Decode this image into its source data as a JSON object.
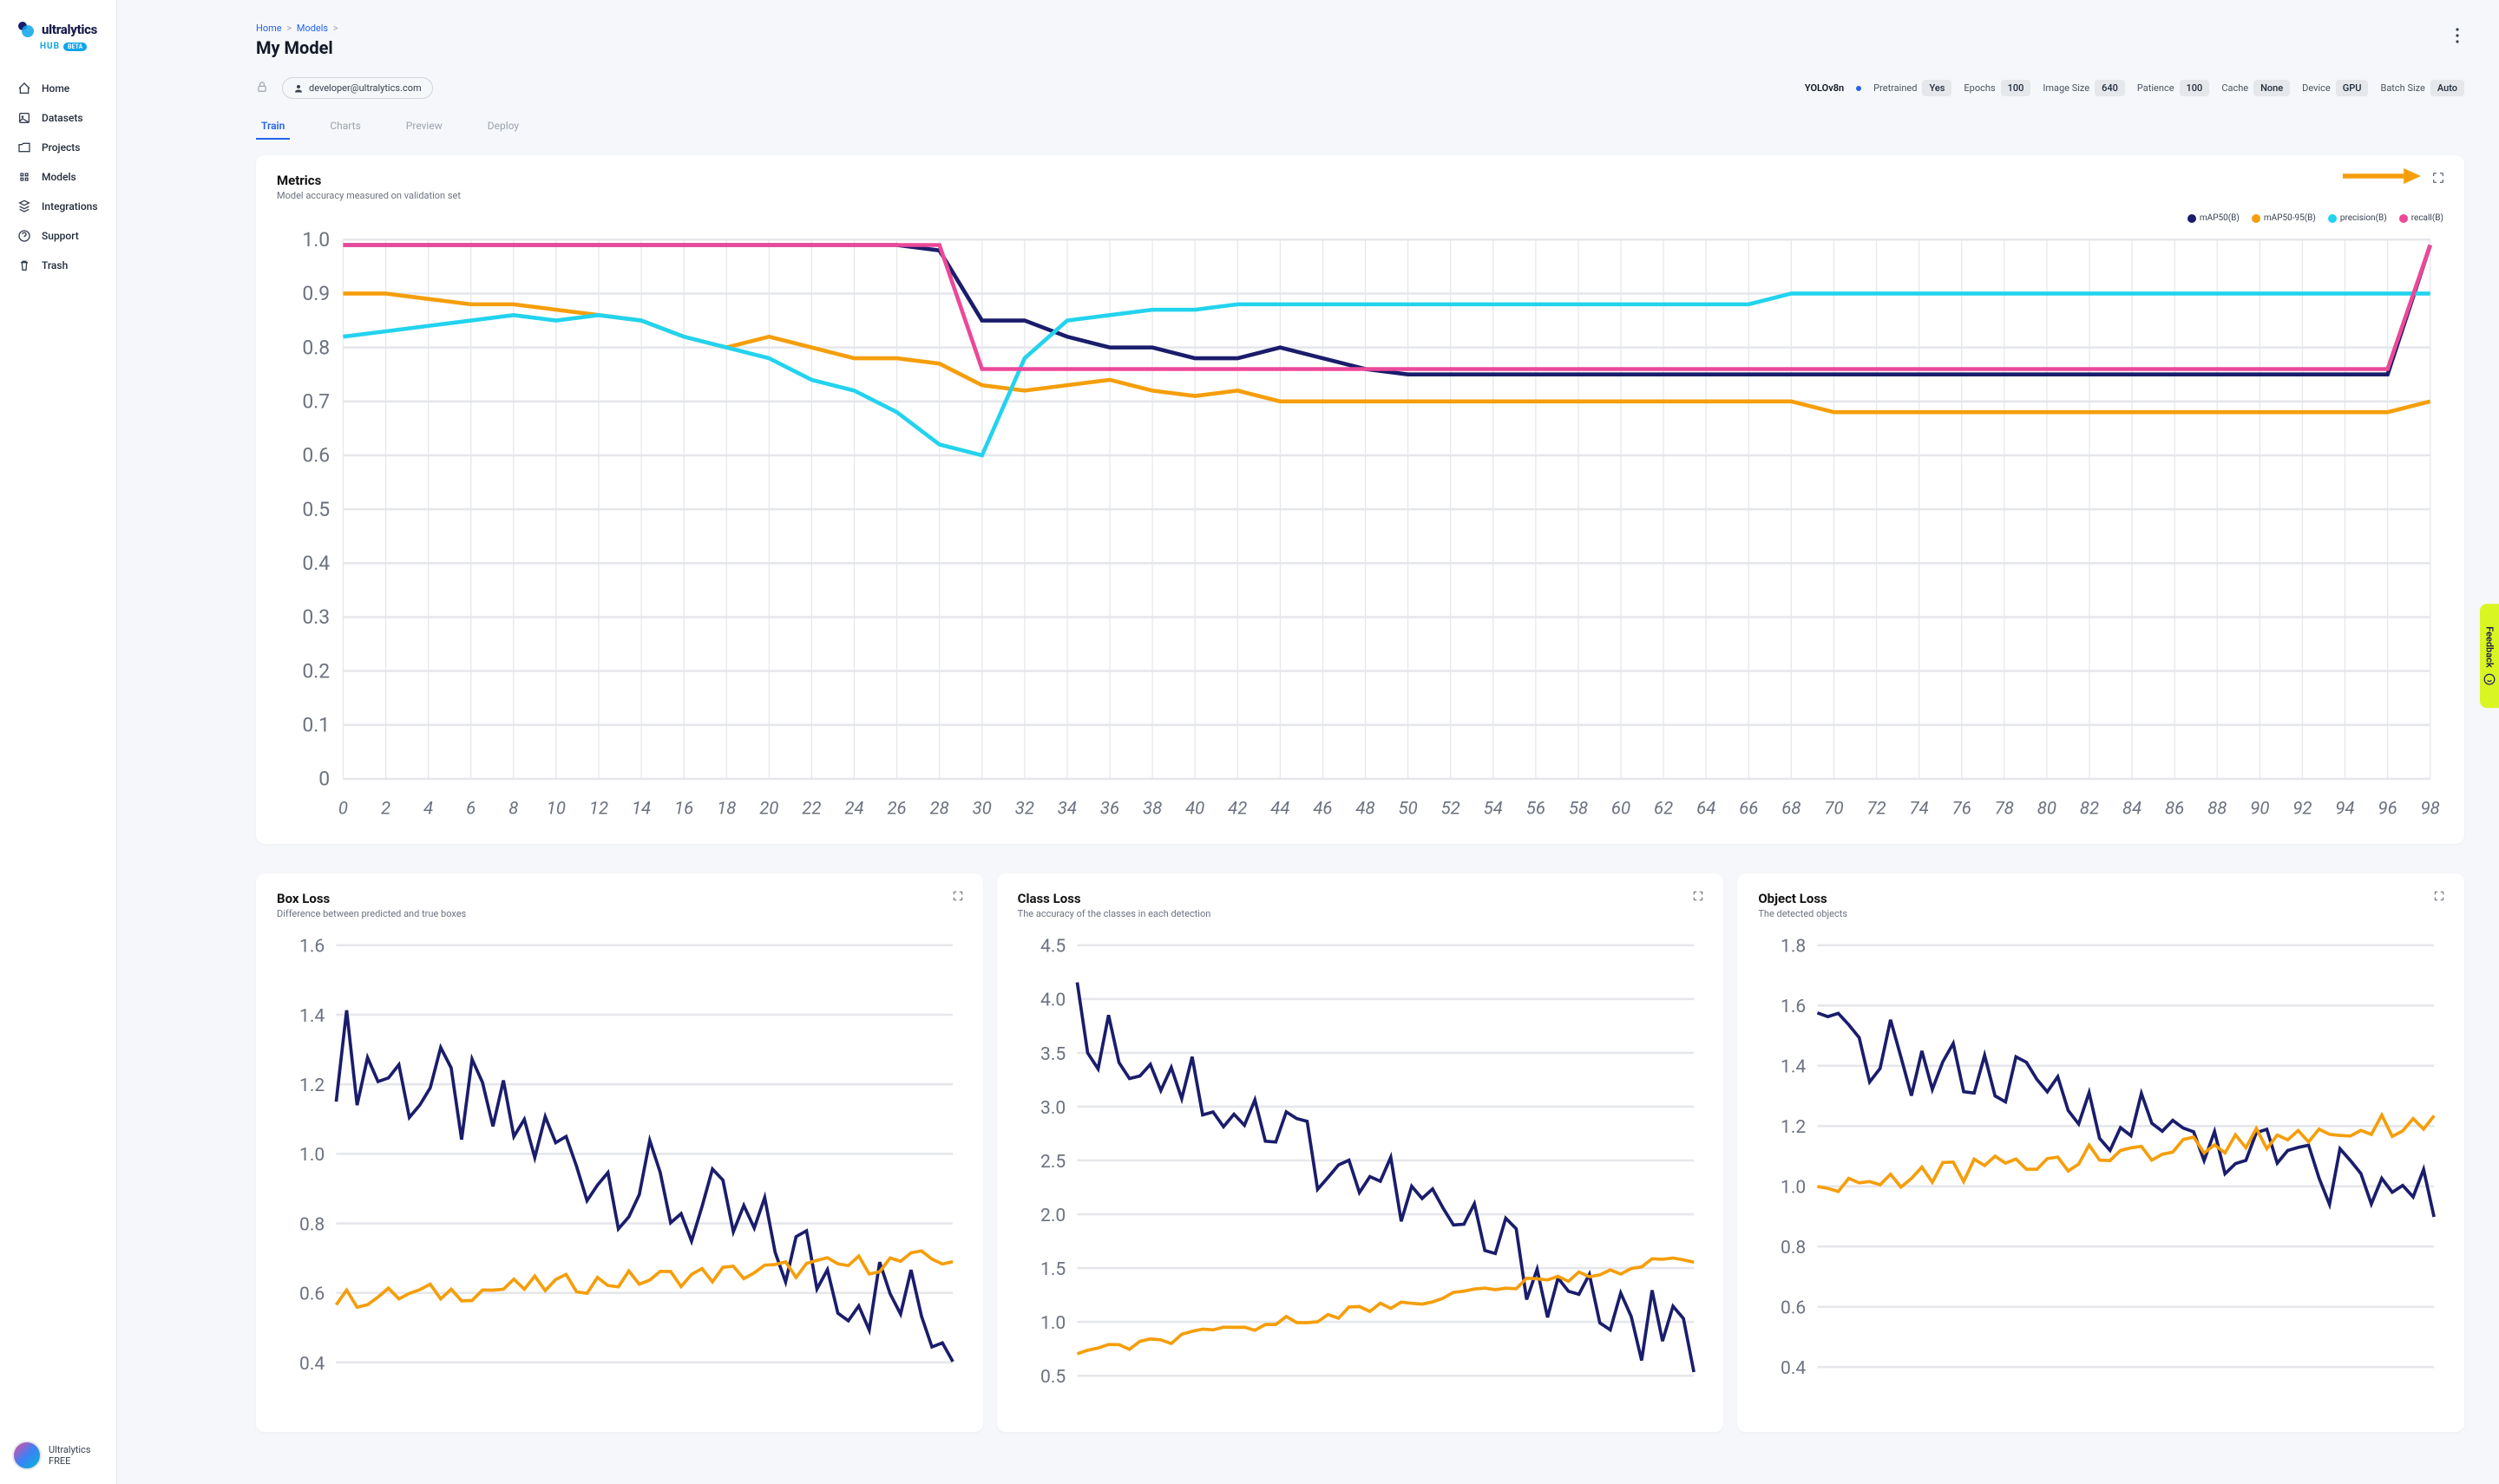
{
  "brand": {
    "name": "ultralytics",
    "sub": "HUB",
    "badge": "BETA"
  },
  "nav": [
    {
      "label": "Home"
    },
    {
      "label": "Datasets"
    },
    {
      "label": "Projects"
    },
    {
      "label": "Models"
    },
    {
      "label": "Integrations"
    },
    {
      "label": "Support"
    },
    {
      "label": "Trash"
    }
  ],
  "footer": {
    "name": "Ultralytics",
    "plan": "FREE"
  },
  "breadcrumb": {
    "home": "Home",
    "models": "Models"
  },
  "page_title": "My Model",
  "user_email": "developer@ultralytics.com",
  "model_name": "YOLOv8n",
  "params": [
    {
      "label": "Pretrained",
      "value": "Yes"
    },
    {
      "label": "Epochs",
      "value": "100"
    },
    {
      "label": "Image Size",
      "value": "640"
    },
    {
      "label": "Patience",
      "value": "100"
    },
    {
      "label": "Cache",
      "value": "None"
    },
    {
      "label": "Device",
      "value": "GPU"
    },
    {
      "label": "Batch Size",
      "value": "Auto"
    }
  ],
  "tabs": [
    "Train",
    "Charts",
    "Preview",
    "Deploy"
  ],
  "active_tab": 0,
  "metrics_card": {
    "title": "Metrics",
    "subtitle": "Model accuracy measured on validation set",
    "legend": [
      {
        "name": "mAP50(B)",
        "color": "#1a1d6b"
      },
      {
        "name": "mAP50-95(B)",
        "color": "#f59e0b"
      },
      {
        "name": "precision(B)",
        "color": "#22d3ee"
      },
      {
        "name": "recall(B)",
        "color": "#ec4899"
      }
    ],
    "y_ticks": [
      "1.0",
      "0.9",
      "0.8",
      "0.7",
      "0.6",
      "0.5",
      "0.4",
      "0.3",
      "0.2",
      "0.1",
      "0"
    ],
    "x_range": [
      0,
      98
    ],
    "x_step": 2,
    "ylim": [
      0,
      1.0
    ],
    "grid_color": "#e5e7eb",
    "background_color": "#ffffff",
    "series": {
      "mAP50": {
        "color": "#1a1d6b",
        "y_at_x": [
          0.99,
          0.99,
          0.99,
          0.99,
          0.99,
          0.99,
          0.99,
          0.99,
          0.99,
          0.99,
          0.99,
          0.99,
          0.99,
          0.99,
          0.98,
          0.85,
          0.85,
          0.82,
          0.8,
          0.8,
          0.78,
          0.78,
          0.8,
          0.78,
          0.76,
          0.75,
          0.75,
          0.75,
          0.75,
          0.75,
          0.75,
          0.75,
          0.75,
          0.75,
          0.75,
          0.75,
          0.75,
          0.75,
          0.75,
          0.75,
          0.75,
          0.75,
          0.75,
          0.75,
          0.75,
          0.75,
          0.75,
          0.75,
          0.75,
          0.99
        ]
      },
      "mAP50-95": {
        "color": "#f59e0b",
        "y_at_x": [
          0.9,
          0.9,
          0.89,
          0.88,
          0.88,
          0.87,
          0.86,
          0.85,
          0.82,
          0.8,
          0.82,
          0.8,
          0.78,
          0.78,
          0.77,
          0.73,
          0.72,
          0.73,
          0.74,
          0.72,
          0.71,
          0.72,
          0.7,
          0.7,
          0.7,
          0.7,
          0.7,
          0.7,
          0.7,
          0.7,
          0.7,
          0.7,
          0.7,
          0.7,
          0.7,
          0.68,
          0.68,
          0.68,
          0.68,
          0.68,
          0.68,
          0.68,
          0.68,
          0.68,
          0.68,
          0.68,
          0.68,
          0.68,
          0.68,
          0.7
        ]
      },
      "precision": {
        "color": "#22d3ee",
        "y_at_x": [
          0.82,
          0.83,
          0.84,
          0.85,
          0.86,
          0.85,
          0.86,
          0.85,
          0.82,
          0.8,
          0.78,
          0.74,
          0.72,
          0.68,
          0.62,
          0.6,
          0.78,
          0.85,
          0.86,
          0.87,
          0.87,
          0.88,
          0.88,
          0.88,
          0.88,
          0.88,
          0.88,
          0.88,
          0.88,
          0.88,
          0.88,
          0.88,
          0.88,
          0.88,
          0.9,
          0.9,
          0.9,
          0.9,
          0.9,
          0.9,
          0.9,
          0.9,
          0.9,
          0.9,
          0.9,
          0.9,
          0.9,
          0.9,
          0.9,
          0.9
        ]
      },
      "recall": {
        "color": "#ec4899",
        "y_at_x": [
          0.99,
          0.99,
          0.99,
          0.99,
          0.99,
          0.99,
          0.99,
          0.99,
          0.99,
          0.99,
          0.99,
          0.99,
          0.99,
          0.99,
          0.99,
          0.76,
          0.76,
          0.76,
          0.76,
          0.76,
          0.76,
          0.76,
          0.76,
          0.76,
          0.76,
          0.76,
          0.76,
          0.76,
          0.76,
          0.76,
          0.76,
          0.76,
          0.76,
          0.76,
          0.76,
          0.76,
          0.76,
          0.76,
          0.76,
          0.76,
          0.76,
          0.76,
          0.76,
          0.76,
          0.76,
          0.76,
          0.76,
          0.76,
          0.76,
          0.99
        ]
      }
    }
  },
  "loss_cards": [
    {
      "title": "Box Loss",
      "subtitle": "Difference between predicted and true boxes",
      "y_ticks": [
        "1.6",
        "1.4",
        "1.2",
        "1.0",
        "0.8",
        "0.6",
        "0.4"
      ],
      "ylim": [
        0.3,
        1.6
      ],
      "series": [
        {
          "color": "#1a1d6b",
          "noise": 0.15,
          "trend_start": 1.3,
          "trend_end": 0.5
        },
        {
          "color": "#f59e0b",
          "noise": 0.03,
          "trend_start": 0.58,
          "trend_end": 0.7
        }
      ]
    },
    {
      "title": "Class Loss",
      "subtitle": "The accuracy of the classes in each detection",
      "y_ticks": [
        "4.5",
        "4.0",
        "3.5",
        "3.0",
        "2.5",
        "2.0",
        "1.5",
        "1.0",
        "0.5"
      ],
      "ylim": [
        0.3,
        4.5
      ],
      "series": [
        {
          "color": "#1a1d6b",
          "noise": 0.4,
          "trend_start": 3.8,
          "trend_end": 0.7
        },
        {
          "color": "#f59e0b",
          "noise": 0.05,
          "trend_start": 0.7,
          "trend_end": 1.6
        }
      ]
    },
    {
      "title": "Object Loss",
      "subtitle": "The detected objects",
      "y_ticks": [
        "1.8",
        "1.6",
        "1.4",
        "1.2",
        "1.0",
        "0.8",
        "0.6",
        "0.4"
      ],
      "ylim": [
        0.3,
        1.8
      ],
      "series": [
        {
          "color": "#1a1d6b",
          "noise": 0.12,
          "trend_start": 1.5,
          "trend_end": 0.95
        },
        {
          "color": "#f59e0b",
          "noise": 0.04,
          "trend_start": 1.0,
          "trend_end": 1.22
        }
      ]
    }
  ],
  "feedback_label": "Feedback",
  "arrow_color": "#f59e0b"
}
